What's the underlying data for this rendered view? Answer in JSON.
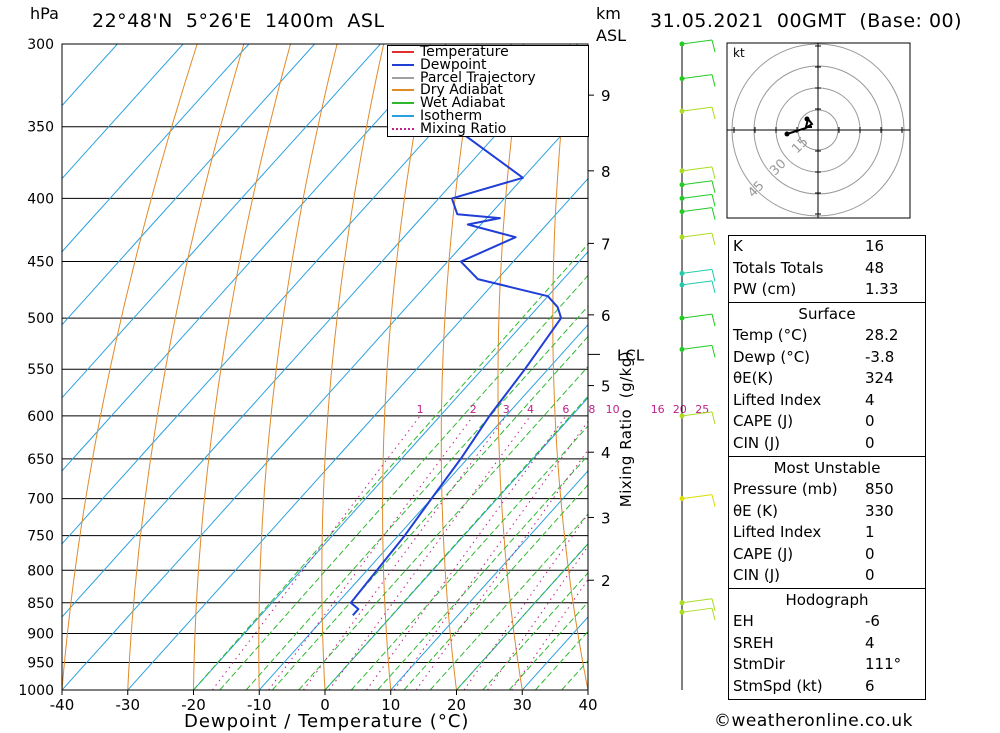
{
  "header": {
    "pressure_unit": "hPa",
    "location": "22°48'N  5°26'E  1400m  ASL",
    "km_unit": "km",
    "asl": "ASL",
    "datetime": "31.05.2021  00GMT  (Base: 00)"
  },
  "chart_data": {
    "type": "skew-t",
    "title": "22°48'N  5°26'E  1400m  ASL",
    "xlabel": "Dewpoint / Temperature (°C)",
    "ylabel": "hPa",
    "xlim": [
      -40,
      40
    ],
    "ylim": [
      1000,
      300
    ],
    "x_ticks": [
      "-40",
      "-30",
      "-20",
      "-10",
      "0",
      "10",
      "20",
      "30",
      "40"
    ],
    "y_ticks": [
      300,
      350,
      400,
      450,
      500,
      550,
      600,
      650,
      700,
      750,
      800,
      850,
      900,
      950,
      1000
    ],
    "km_ticks": [
      {
        "label": "9",
        "p": 330
      },
      {
        "label": "8",
        "p": 380
      },
      {
        "label": "7",
        "p": 435
      },
      {
        "label": "6",
        "p": 497
      },
      {
        "label": "5",
        "p": 567
      },
      {
        "label": "4",
        "p": 642
      },
      {
        "label": "3",
        "p": 725
      },
      {
        "label": "2",
        "p": 815
      }
    ],
    "lcl_label": "LCL",
    "lcl_pressure": 535,
    "mixing_ratio_label": "Mixing Ratio  (g/kg)",
    "mixing_ratio_values": [
      "1",
      "2",
      "3",
      "4",
      "6",
      "8",
      "10",
      "16",
      "20",
      "25"
    ],
    "legend": [
      "Temperature",
      "Dewpoint",
      "Parcel Trajectory",
      "Dry Adiabat",
      "Wet Adiabat",
      "Isotherm",
      "Mixing Ratio"
    ],
    "colors": {
      "temperature": "#e03030",
      "dewpoint": "#1f3fd6",
      "parcel": "#a0a0a0",
      "dry": "#e08a2a",
      "wet": "#2db82d",
      "isotherm": "#2aa0e0",
      "mixing": "#c0208a"
    },
    "series": [
      {
        "name": "Temperature",
        "points": [
          [
            870,
            32
          ],
          [
            862,
            35
          ],
          [
            855,
            36.5
          ],
          [
            850,
            35.5
          ],
          [
            800,
            31
          ],
          [
            750,
            26
          ],
          [
            700,
            21
          ],
          [
            650,
            16.5
          ],
          [
            600,
            12
          ],
          [
            550,
            7.5
          ],
          [
            500,
            2
          ],
          [
            480,
            0
          ],
          [
            450,
            -3
          ],
          [
            430,
            -5.5
          ],
          [
            420,
            -7
          ],
          [
            405,
            -9
          ],
          [
            390,
            -12
          ],
          [
            370,
            -15
          ],
          [
            350,
            -18
          ],
          [
            330,
            -21
          ],
          [
            315,
            -24
          ],
          [
            300,
            -27
          ]
        ]
      },
      {
        "name": "Dewpoint",
        "points": [
          [
            870,
            -6
          ],
          [
            860,
            -6
          ],
          [
            850,
            -8
          ],
          [
            800,
            -8.5
          ],
          [
            750,
            -9
          ],
          [
            700,
            -10
          ],
          [
            650,
            -11
          ],
          [
            600,
            -12.5
          ],
          [
            550,
            -13.5
          ],
          [
            500,
            -15
          ],
          [
            490,
            -17
          ],
          [
            480,
            -20
          ],
          [
            465,
            -33
          ],
          [
            450,
            -38
          ],
          [
            430,
            -33
          ],
          [
            420,
            -42
          ],
          [
            415,
            -38
          ],
          [
            412,
            -45
          ],
          [
            400,
            -48
          ],
          [
            385,
            -40
          ],
          [
            355,
            -55
          ],
          [
            335,
            -42
          ],
          [
            320,
            -50
          ],
          [
            300,
            -40
          ]
        ]
      },
      {
        "name": "Parcel Trajectory",
        "points": [
          [
            850,
            35.5
          ],
          [
            800,
            29.5
          ],
          [
            750,
            23.5
          ],
          [
            700,
            18
          ],
          [
            650,
            12.5
          ],
          [
            600,
            7.5
          ],
          [
            550,
            2.2
          ],
          [
            535,
            0
          ],
          [
            500,
            -4
          ],
          [
            450,
            -10
          ],
          [
            400,
            -17
          ],
          [
            350,
            -25
          ],
          [
            300,
            -33
          ]
        ]
      }
    ]
  },
  "hodograph": {
    "unit": "kt",
    "rings": [
      "15",
      "30",
      "45"
    ]
  },
  "indices": {
    "rows": [
      {
        "label": "K",
        "value": "16"
      },
      {
        "label": "Totals Totals",
        "value": "48"
      },
      {
        "label": "PW (cm)",
        "value": "1.33"
      }
    ],
    "surface": {
      "title": "Surface",
      "rows": [
        {
          "label": "Temp (°C)",
          "value": "28.2"
        },
        {
          "label": "Dewp (°C)",
          "value": "-3.8"
        },
        {
          "label": "θE(K)",
          "value": "324"
        },
        {
          "label": "Lifted Index",
          "value": "4"
        },
        {
          "label": "CAPE (J)",
          "value": "0"
        },
        {
          "label": "CIN (J)",
          "value": "0"
        }
      ]
    },
    "most_unstable": {
      "title": "Most Unstable",
      "rows": [
        {
          "label": "Pressure (mb)",
          "value": "850"
        },
        {
          "label": "θE (K)",
          "value": "330"
        },
        {
          "label": "Lifted Index",
          "value": "1"
        },
        {
          "label": "CAPE (J)",
          "value": "0"
        },
        {
          "label": "CIN (J)",
          "value": "0"
        }
      ]
    },
    "hodograph": {
      "title": "Hodograph",
      "rows": [
        {
          "label": "EH",
          "value": "-6"
        },
        {
          "label": "SREH",
          "value": "4"
        },
        {
          "label": "StmDir",
          "value": "111°"
        },
        {
          "label": "StmSpd (kt)",
          "value": "6"
        }
      ]
    }
  },
  "credit": "©weatheronline.co.uk"
}
